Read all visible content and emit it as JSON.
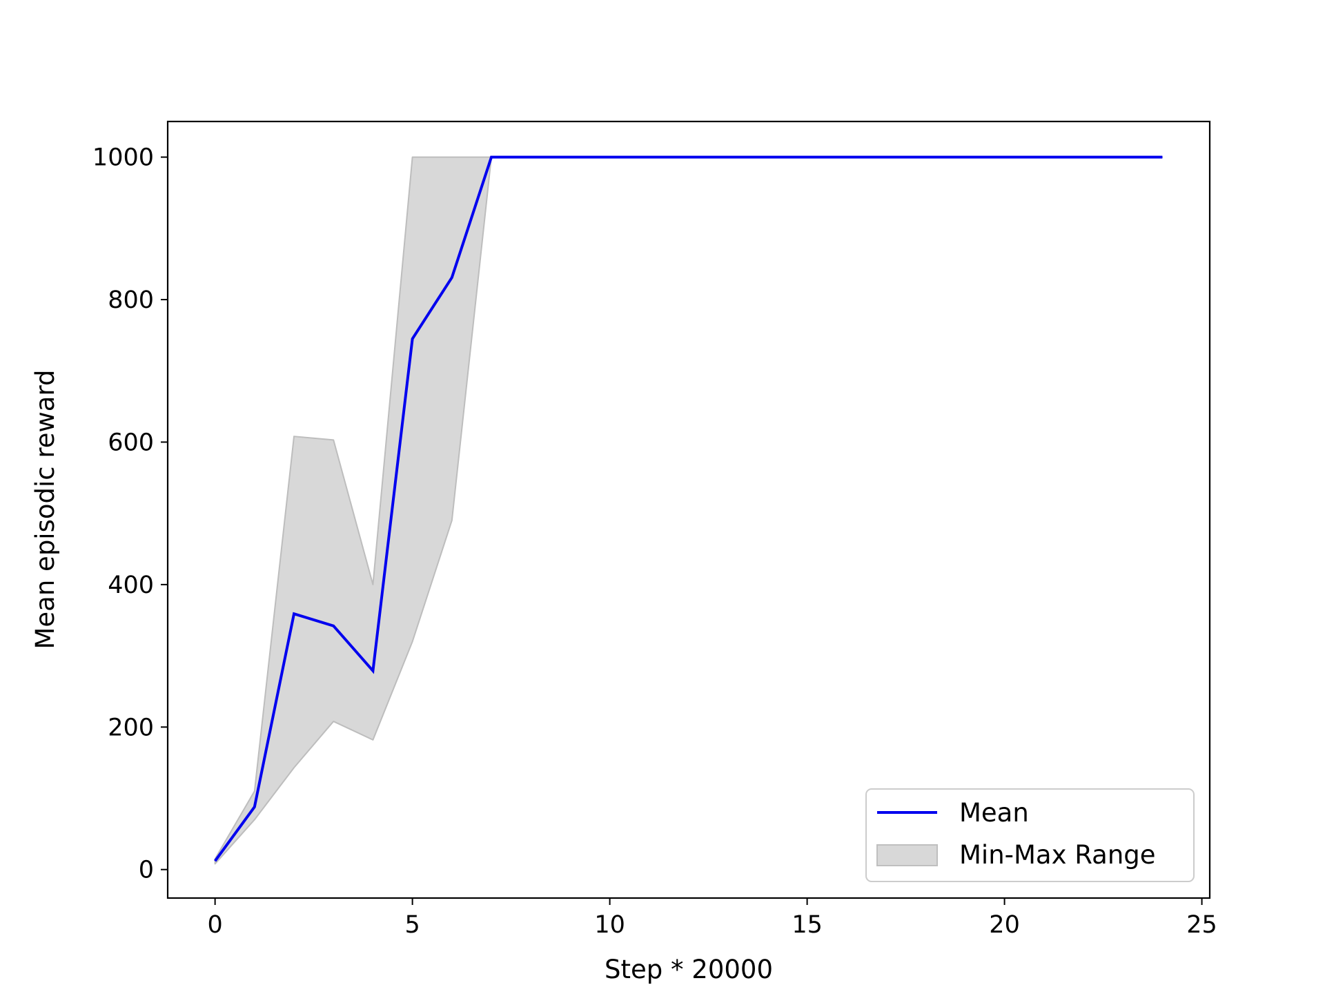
{
  "chart_data": {
    "type": "line",
    "title": "",
    "xlabel": "Step * 20000",
    "ylabel": "Mean episodic reward",
    "xlim": [
      -1.2,
      25.2
    ],
    "ylim": [
      -40,
      1050
    ],
    "x_ticks": [
      0,
      5,
      10,
      15,
      20,
      25
    ],
    "y_ticks": [
      0,
      200,
      400,
      600,
      800,
      1000
    ],
    "x_tick_labels": [
      "0",
      "5",
      "10",
      "15",
      "20",
      "25"
    ],
    "y_tick_labels": [
      "0",
      "200",
      "400",
      "600",
      "800",
      "1000"
    ],
    "grid": false,
    "legend_position": "lower-right",
    "x": [
      0,
      1,
      2,
      3,
      4,
      5,
      6,
      7,
      8,
      9,
      10,
      11,
      12,
      13,
      14,
      15,
      16,
      17,
      18,
      19,
      20,
      21,
      22,
      23,
      24
    ],
    "series": [
      {
        "name": "Mean",
        "type": "line",
        "color": "#0000ee",
        "values": [
          12,
          88,
          359,
          342,
          279,
          745,
          831,
          1000,
          1000,
          1000,
          1000,
          1000,
          1000,
          1000,
          1000,
          1000,
          1000,
          1000,
          1000,
          1000,
          1000,
          1000,
          1000,
          1000,
          1000
        ]
      },
      {
        "name": "Min-Max Range",
        "type": "band",
        "color": "#d8d8d8",
        "lower": [
          8,
          70,
          143,
          208,
          182,
          320,
          490,
          1000,
          1000,
          1000,
          1000,
          1000,
          1000,
          1000,
          1000,
          1000,
          1000,
          1000,
          1000,
          1000,
          1000,
          1000,
          1000,
          1000,
          1000
        ],
        "upper": [
          15,
          110,
          608,
          603,
          400,
          1000,
          1000,
          1000,
          1000,
          1000,
          1000,
          1000,
          1000,
          1000,
          1000,
          1000,
          1000,
          1000,
          1000,
          1000,
          1000,
          1000,
          1000,
          1000,
          1000
        ]
      }
    ],
    "legend": {
      "mean_label": "Mean",
      "range_label": "Min-Max Range"
    }
  }
}
